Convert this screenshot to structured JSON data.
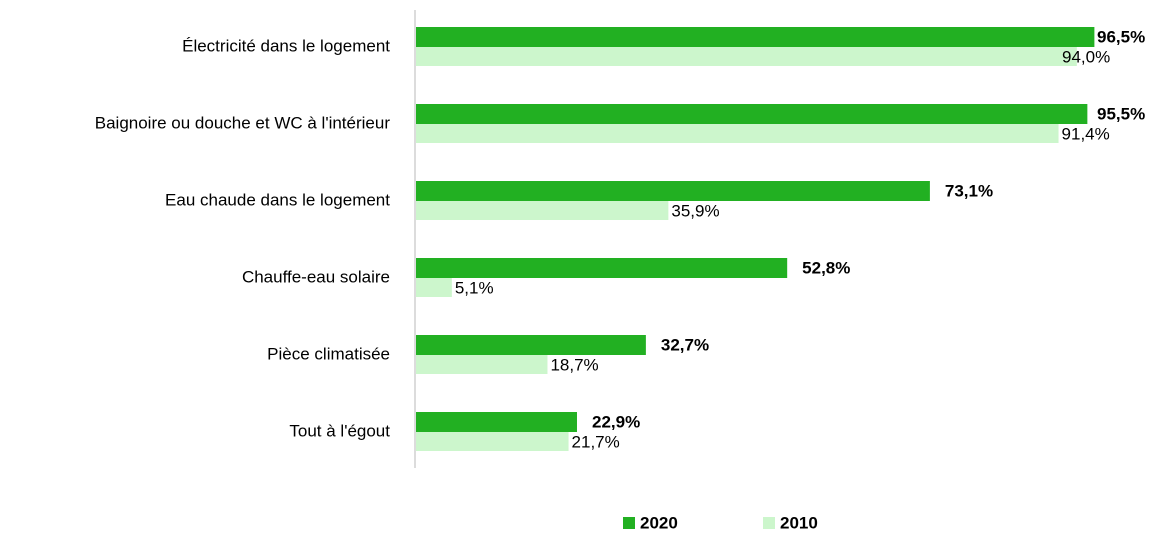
{
  "chart_data": {
    "type": "bar",
    "orientation": "horizontal",
    "categories": [
      "Électricité dans le logement",
      "Baignoire ou douche et WC à l'intérieur",
      "Eau chaude dans le logement",
      "Chauffe-eau solaire",
      "Pièce climatisée",
      "Tout à l'égout"
    ],
    "series": [
      {
        "name": "2020",
        "color": "#22b022",
        "values": [
          96.5,
          95.5,
          73.1,
          52.8,
          32.7,
          22.9
        ],
        "value_labels": [
          "96,5%",
          "95,5%",
          "73,1%",
          "52,8%",
          "32,7%",
          "22,9%"
        ]
      },
      {
        "name": "2010",
        "color": "#ccf6cc",
        "values": [
          94.0,
          91.4,
          35.9,
          5.1,
          18.7,
          21.7
        ],
        "value_labels": [
          "94,0%",
          "91,4%",
          "35,9%",
          "5,1%",
          "18,7%",
          "21,7%"
        ]
      }
    ],
    "legend": "bottom"
  }
}
